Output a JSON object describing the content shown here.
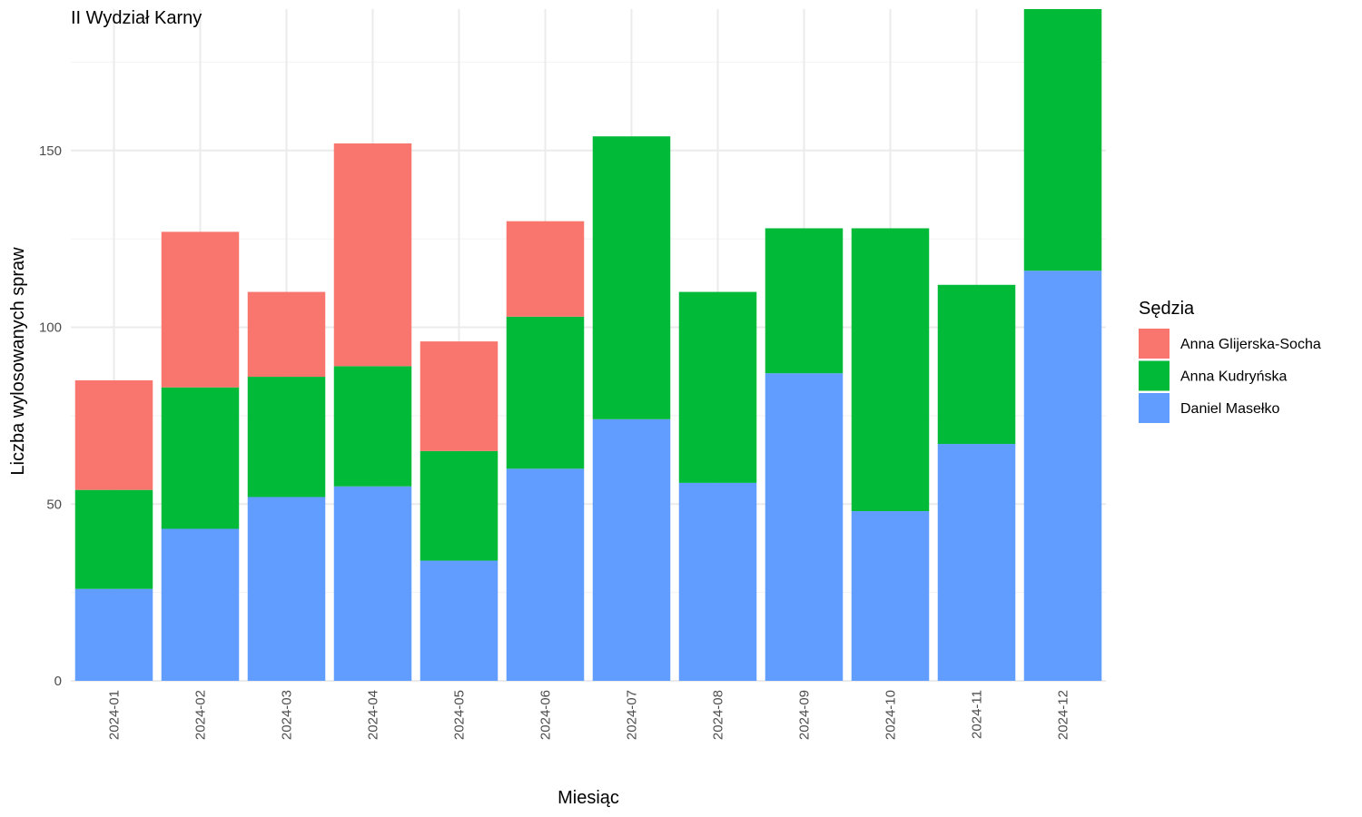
{
  "chart_data": {
    "type": "bar",
    "stacked": true,
    "title": "II Wydział Karny",
    "xlabel": "Miesiąc",
    "ylabel": "Liczba wylosowanych spraw",
    "ylim": [
      0,
      190
    ],
    "yticks": [
      0,
      50,
      100,
      150
    ],
    "grid": true,
    "legend_position": "right",
    "legend_title": "Sędzia",
    "categories": [
      "2024-01",
      "2024-02",
      "2024-03",
      "2024-04",
      "2024-05",
      "2024-06",
      "2024-07",
      "2024-08",
      "2024-09",
      "2024-10",
      "2024-11",
      "2024-12"
    ],
    "series": [
      {
        "name": "Daniel Masełko",
        "color": "#619CFF",
        "values": [
          26,
          43,
          52,
          55,
          34,
          60,
          74,
          56,
          87,
          48,
          67,
          116
        ]
      },
      {
        "name": "Anna Kudryńska",
        "color": "#00BA38",
        "values": [
          28,
          40,
          34,
          34,
          31,
          43,
          80,
          54,
          41,
          80,
          45,
          74
        ]
      },
      {
        "name": "Anna Glijerska-Socha",
        "color": "#F8766D",
        "values": [
          31,
          44,
          24,
          63,
          31,
          27,
          0,
          0,
          0,
          0,
          0,
          0
        ]
      }
    ],
    "legend_order": [
      "Anna Glijerska-Socha",
      "Anna Kudryńska",
      "Daniel Masełko"
    ]
  }
}
